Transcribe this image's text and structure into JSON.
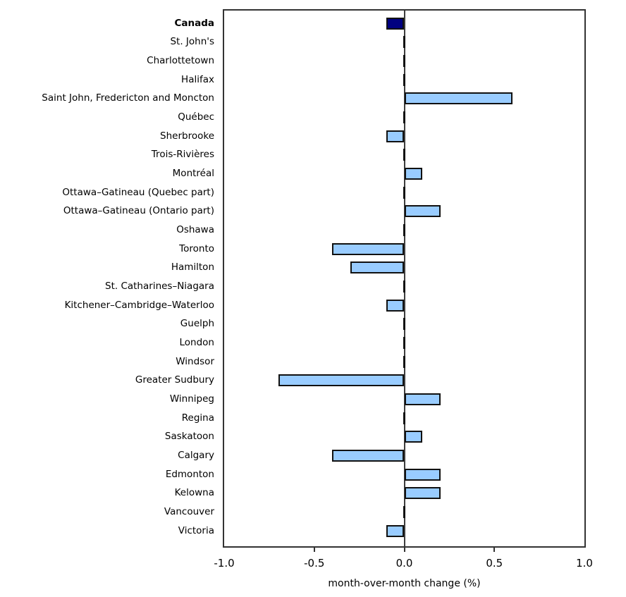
{
  "chart_data": {
    "type": "bar",
    "orientation": "horizontal",
    "title": "",
    "xlabel": "month-over-month change (%)",
    "ylabel": "",
    "xlim": [
      -1.0,
      1.0
    ],
    "xticks": [
      -1.0,
      -0.5,
      0.0,
      0.5,
      1.0
    ],
    "xtick_labels": [
      "-1.0",
      "-0.5",
      "0.0",
      "0.5",
      "1.0"
    ],
    "grid": false,
    "legend": "none",
    "highlight_category": "Canada",
    "categories": [
      "Canada",
      "St. John's",
      "Charlottetown",
      "Halifax",
      "Saint John, Fredericton and Moncton",
      "Québec",
      "Sherbrooke",
      "Trois-Rivières",
      "Montréal",
      "Ottawa–Gatineau (Quebec part)",
      "Ottawa–Gatineau (Ontario part)",
      "Oshawa",
      "Toronto",
      "Hamilton",
      "St. Catharines–Niagara",
      "Kitchener–Cambridge–Waterloo",
      "Guelph",
      "London",
      "Windsor",
      "Greater Sudbury",
      "Winnipeg",
      "Regina",
      "Saskatoon",
      "Calgary",
      "Edmonton",
      "Kelowna",
      "Vancouver",
      "Victoria"
    ],
    "values": [
      -0.1,
      0.0,
      0.0,
      0.0,
      0.6,
      0.0,
      -0.1,
      0.0,
      0.1,
      0.0,
      0.2,
      0.0,
      -0.4,
      -0.3,
      0.0,
      -0.1,
      0.0,
      0.0,
      0.0,
      -0.7,
      0.2,
      0.0,
      0.1,
      -0.4,
      0.2,
      0.2,
      0.0,
      -0.1
    ],
    "colors": {
      "bar_fill": "#99ccff",
      "bar_border": "#111111",
      "highlight_fill": "#000080",
      "axis": "#333333",
      "zero_line": "#3d3d3d",
      "text": "#000000",
      "background": "#ffffff"
    }
  }
}
